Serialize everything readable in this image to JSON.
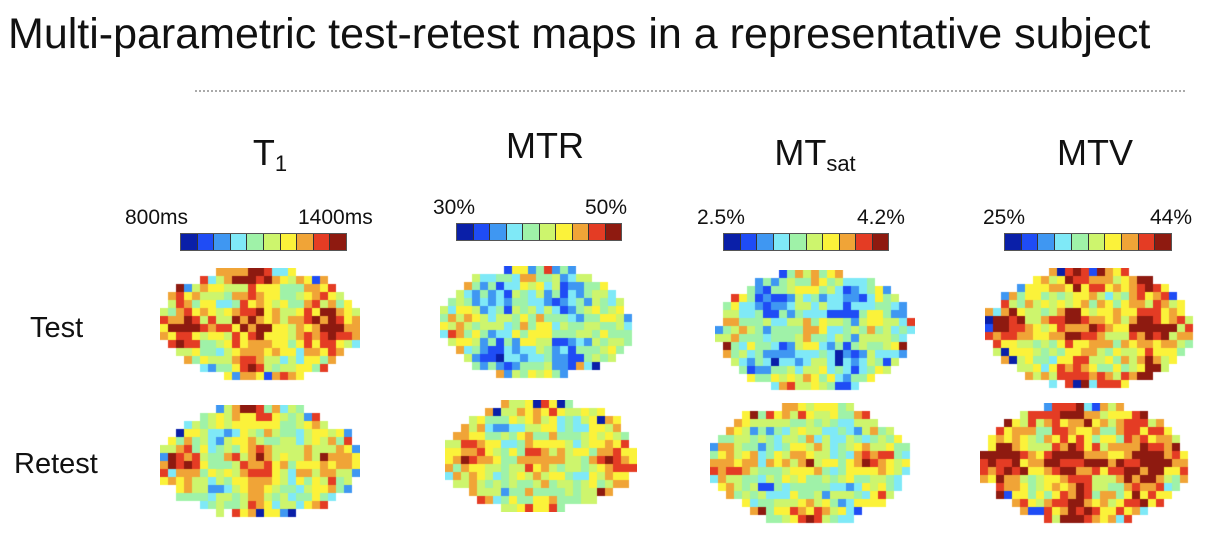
{
  "title": "Multi-parametric test-retest maps in a representative subject",
  "columns": [
    {
      "name": "T",
      "sub": "1",
      "cb_min": "800ms",
      "cb_max": "1400ms"
    },
    {
      "name": "MTR",
      "sub": "",
      "cb_min": "30%",
      "cb_max": "50%"
    },
    {
      "name": "MT",
      "sub": "sat",
      "cb_min": "2.5%",
      "cb_max": "4.2%"
    },
    {
      "name": "MTV",
      "sub": "",
      "cb_min": "25%",
      "cb_max": "44%"
    }
  ],
  "rows": [
    "Test",
    "Retest"
  ],
  "colormap": [
    "#0a1fa8",
    "#1f4cf5",
    "#3f97f2",
    "#7fe9f7",
    "#9ff2a8",
    "#cdf56d",
    "#fbf23a",
    "#f0a437",
    "#e43c24",
    "#8e1a10"
  ]
}
